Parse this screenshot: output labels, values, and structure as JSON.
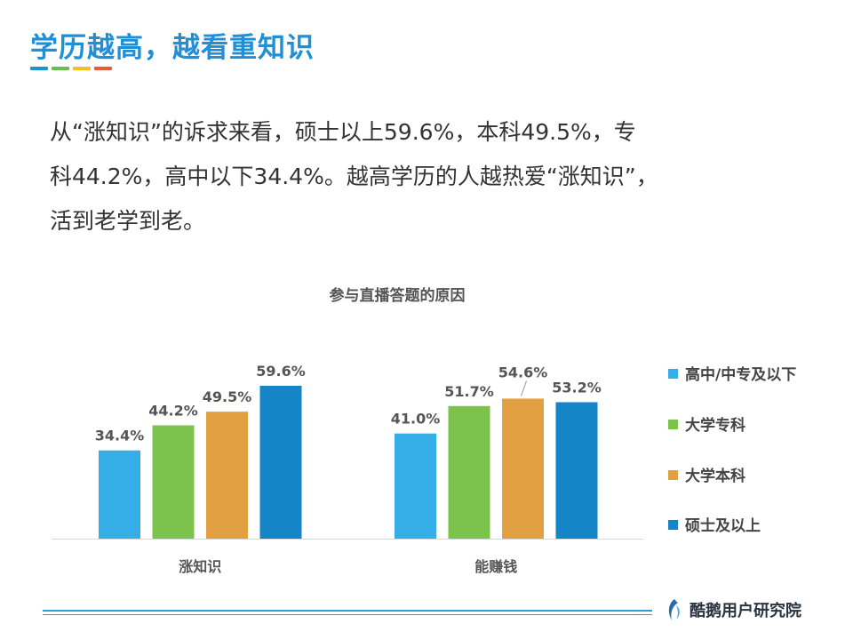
{
  "page": {
    "title": "学历越高，越看重知识",
    "paragraph_lines": [
      "从“涨知识”的诉求来看，硕士以上59.6%，本科49.5%，专",
      "科44.2%，高中以下34.4%。越高学历的人越热爱“涨知识”，",
      "活到老学到老。"
    ],
    "accent_colors": [
      "#1f8fd6",
      "#6abf4b",
      "#f2c029",
      "#e85c3a"
    ],
    "brand": "酷鹅用户研究院"
  },
  "chart_data": {
    "type": "bar",
    "title": "参与直播答题的原因",
    "categories": [
      "涨知识",
      "能赚钱"
    ],
    "series": [
      {
        "name": "高中/中专及以下",
        "values": [
          34.4,
          41.0
        ],
        "labels": [
          "34.4%",
          "41.0%"
        ],
        "color": "#35aee8"
      },
      {
        "name": "大学专科",
        "values": [
          44.2,
          51.7
        ],
        "labels": [
          "44.2%",
          "51.7%"
        ],
        "color": "#7cc34e"
      },
      {
        "name": "大学本科",
        "values": [
          49.5,
          54.6
        ],
        "labels": [
          "49.5%",
          "54.6%"
        ],
        "color": "#e1a041"
      },
      {
        "name": "硕士及以上",
        "values": [
          59.6,
          53.2
        ],
        "labels": [
          "59.6%",
          "53.2%"
        ],
        "color": "#1585c8"
      }
    ],
    "ylim": [
      0,
      70
    ],
    "grid": false,
    "legend": "right"
  }
}
